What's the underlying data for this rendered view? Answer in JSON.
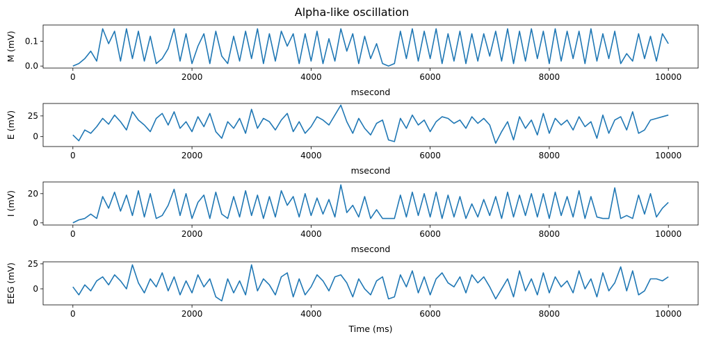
{
  "title": "Alpha-like oscillation",
  "chart_data": [
    {
      "type": "line",
      "ylabel": "M (mV)",
      "xlabel": "msecond",
      "xlim": [
        -500,
        10500
      ],
      "ylim": [
        -0.008,
        0.165
      ],
      "xticks": [
        0,
        2000,
        4000,
        6000,
        8000,
        10000
      ],
      "yticks": [
        0.0,
        0.1
      ],
      "ytick_labels": [
        "0.0",
        "0.1"
      ],
      "color": "#1f77b4",
      "series": [
        {
          "x": [
            0,
            100,
            200,
            300,
            400,
            500,
            600,
            700,
            800,
            900,
            1000,
            1100,
            1200,
            1300,
            1400,
            1500,
            1600,
            1700,
            1800,
            1900,
            2000,
            2100,
            2200,
            2300,
            2400,
            2500,
            2600,
            2700,
            2800,
            2900,
            3000,
            3100,
            3200,
            3300,
            3400,
            3500,
            3600,
            3700,
            3800,
            3900,
            4000,
            4100,
            4200,
            4300,
            4400,
            4500,
            4600,
            4700,
            4800,
            4900,
            5000,
            5100,
            5200,
            5300,
            5400,
            5500,
            5600,
            5700,
            5800,
            5900,
            6000,
            6100,
            6200,
            6300,
            6400,
            6500,
            6600,
            6700,
            6800,
            6900,
            7000,
            7100,
            7200,
            7300,
            7400,
            7500,
            7600,
            7700,
            7800,
            7900,
            8000,
            8100,
            8200,
            8300,
            8400,
            8500,
            8600,
            8700,
            8800,
            8900,
            9000,
            9100,
            9200,
            9300,
            9400,
            9500,
            9600,
            9700,
            9800,
            9900,
            10000
          ],
          "values": [
            0.0,
            0.01,
            0.03,
            0.06,
            0.02,
            0.15,
            0.09,
            0.14,
            0.02,
            0.15,
            0.03,
            0.14,
            0.02,
            0.12,
            0.01,
            0.03,
            0.07,
            0.15,
            0.02,
            0.13,
            0.01,
            0.08,
            0.13,
            0.01,
            0.14,
            0.04,
            0.01,
            0.12,
            0.02,
            0.14,
            0.03,
            0.15,
            0.01,
            0.13,
            0.02,
            0.14,
            0.08,
            0.13,
            0.01,
            0.13,
            0.02,
            0.14,
            0.01,
            0.11,
            0.02,
            0.15,
            0.06,
            0.13,
            0.01,
            0.12,
            0.03,
            0.09,
            0.01,
            0.0,
            0.01,
            0.14,
            0.03,
            0.15,
            0.02,
            0.14,
            0.03,
            0.15,
            0.01,
            0.13,
            0.02,
            0.14,
            0.01,
            0.13,
            0.02,
            0.13,
            0.04,
            0.14,
            0.02,
            0.15,
            0.01,
            0.14,
            0.02,
            0.15,
            0.03,
            0.14,
            0.01,
            0.15,
            0.02,
            0.14,
            0.03,
            0.14,
            0.01,
            0.15,
            0.02,
            0.13,
            0.03,
            0.14,
            0.01,
            0.05,
            0.02,
            0.13,
            0.03,
            0.12,
            0.02,
            0.13,
            0.09
          ]
        }
      ]
    },
    {
      "type": "line",
      "ylabel": "E (mV)",
      "xlabel": "msecond",
      "xlim": [
        -500,
        10500
      ],
      "ylim": [
        -12,
        40
      ],
      "xticks": [
        0,
        2000,
        4000,
        6000,
        8000,
        10000
      ],
      "yticks": [
        0,
        25
      ],
      "ytick_labels": [
        "0",
        "25"
      ],
      "color": "#1f77b4",
      "series": [
        {
          "x": [
            0,
            100,
            200,
            300,
            400,
            500,
            600,
            700,
            800,
            900,
            1000,
            1100,
            1200,
            1300,
            1400,
            1500,
            1600,
            1700,
            1800,
            1900,
            2000,
            2100,
            2200,
            2300,
            2400,
            2500,
            2600,
            2700,
            2800,
            2900,
            3000,
            3100,
            3200,
            3300,
            3400,
            3500,
            3600,
            3700,
            3800,
            3900,
            4000,
            4100,
            4200,
            4300,
            4400,
            4500,
            4600,
            4700,
            4800,
            4900,
            5000,
            5100,
            5200,
            5300,
            5400,
            5500,
            5600,
            5700,
            5800,
            5900,
            6000,
            6100,
            6200,
            6300,
            6400,
            6500,
            6600,
            6700,
            6800,
            6900,
            7000,
            7100,
            7200,
            7300,
            7400,
            7500,
            7600,
            7700,
            7800,
            7900,
            8000,
            8100,
            8200,
            8300,
            8400,
            8500,
            8600,
            8700,
            8800,
            8900,
            9000,
            9100,
            9200,
            9300,
            9400,
            9500,
            9600,
            9700,
            9800,
            9900,
            10000
          ],
          "values": [
            2,
            -5,
            8,
            4,
            12,
            22,
            15,
            26,
            18,
            8,
            30,
            20,
            14,
            6,
            22,
            28,
            14,
            30,
            10,
            18,
            6,
            24,
            12,
            28,
            6,
            -2,
            18,
            10,
            22,
            4,
            33,
            10,
            22,
            18,
            8,
            20,
            28,
            6,
            18,
            4,
            12,
            24,
            20,
            14,
            26,
            38,
            18,
            4,
            22,
            10,
            2,
            16,
            20,
            -4,
            -6,
            22,
            10,
            26,
            14,
            20,
            6,
            18,
            24,
            22,
            16,
            20,
            10,
            24,
            16,
            22,
            14,
            -8,
            6,
            18,
            -4,
            24,
            10,
            20,
            2,
            28,
            4,
            22,
            14,
            20,
            8,
            24,
            12,
            18,
            -2,
            26,
            4,
            20,
            24,
            8,
            30,
            4,
            8,
            20,
            22,
            24,
            26
          ]
        }
      ]
    },
    {
      "type": "line",
      "ylabel": "I (mV)",
      "xlabel": "msecond",
      "xlim": [
        -500,
        10500
      ],
      "ylim": [
        -1.5,
        28
      ],
      "xticks": [
        0,
        2000,
        4000,
        6000,
        8000,
        10000
      ],
      "yticks": [
        0,
        20
      ],
      "ytick_labels": [
        "0",
        "20"
      ],
      "color": "#1f77b4",
      "series": [
        {
          "x": [
            0,
            100,
            200,
            300,
            400,
            500,
            600,
            700,
            800,
            900,
            1000,
            1100,
            1200,
            1300,
            1400,
            1500,
            1600,
            1700,
            1800,
            1900,
            2000,
            2100,
            2200,
            2300,
            2400,
            2500,
            2600,
            2700,
            2800,
            2900,
            3000,
            3100,
            3200,
            3300,
            3400,
            3500,
            3600,
            3700,
            3800,
            3900,
            4000,
            4100,
            4200,
            4300,
            4400,
            4500,
            4600,
            4700,
            4800,
            4900,
            5000,
            5100,
            5200,
            5300,
            5400,
            5500,
            5600,
            5700,
            5800,
            5900,
            6000,
            6100,
            6200,
            6300,
            6400,
            6500,
            6600,
            6700,
            6800,
            6900,
            7000,
            7100,
            7200,
            7300,
            7400,
            7500,
            7600,
            7700,
            7800,
            7900,
            8000,
            8100,
            8200,
            8300,
            8400,
            8500,
            8600,
            8700,
            8800,
            8900,
            9000,
            9100,
            9200,
            9300,
            9400,
            9500,
            9600,
            9700,
            9800,
            9900,
            10000
          ],
          "values": [
            0,
            2,
            3,
            6,
            3,
            18,
            10,
            21,
            8,
            19,
            5,
            22,
            4,
            20,
            3,
            5,
            12,
            23,
            5,
            20,
            3,
            14,
            19,
            3,
            21,
            6,
            3,
            18,
            4,
            22,
            5,
            19,
            3,
            18,
            4,
            22,
            12,
            18,
            4,
            20,
            5,
            17,
            6,
            16,
            4,
            26,
            7,
            12,
            4,
            18,
            3,
            9,
            3,
            3,
            3,
            19,
            4,
            21,
            5,
            20,
            4,
            21,
            3,
            19,
            4,
            18,
            3,
            13,
            4,
            16,
            5,
            18,
            3,
            21,
            4,
            19,
            5,
            20,
            4,
            20,
            3,
            21,
            5,
            18,
            4,
            22,
            3,
            18,
            4,
            3,
            3,
            24,
            3,
            5,
            3,
            19,
            6,
            20,
            4,
            10,
            14
          ]
        }
      ]
    },
    {
      "type": "line",
      "ylabel": "EEG (mV)",
      "xlabel": "Time (ms)",
      "xlim": [
        -500,
        10500
      ],
      "ylim": [
        -16,
        27
      ],
      "xticks": [
        0,
        2000,
        4000,
        6000,
        8000,
        10000
      ],
      "yticks": [
        0,
        25
      ],
      "ytick_labels": [
        "0",
        "25"
      ],
      "color": "#1f77b4",
      "series": [
        {
          "x": [
            0,
            100,
            200,
            300,
            400,
            500,
            600,
            700,
            800,
            900,
            1000,
            1100,
            1200,
            1300,
            1400,
            1500,
            1600,
            1700,
            1800,
            1900,
            2000,
            2100,
            2200,
            2300,
            2400,
            2500,
            2600,
            2700,
            2800,
            2900,
            3000,
            3100,
            3200,
            3300,
            3400,
            3500,
            3600,
            3700,
            3800,
            3900,
            4000,
            4100,
            4200,
            4300,
            4400,
            4500,
            4600,
            4700,
            4800,
            4900,
            5000,
            5100,
            5200,
            5300,
            5400,
            5500,
            5600,
            5700,
            5800,
            5900,
            6000,
            6100,
            6200,
            6300,
            6400,
            6500,
            6600,
            6700,
            6800,
            6900,
            7000,
            7100,
            7200,
            7300,
            7400,
            7500,
            7600,
            7700,
            7800,
            7900,
            8000,
            8100,
            8200,
            8300,
            8400,
            8500,
            8600,
            8700,
            8800,
            8900,
            9000,
            9100,
            9200,
            9300,
            9400,
            9500,
            9600,
            9700,
            9800,
            9900,
            10000
          ],
          "values": [
            2,
            -6,
            4,
            -2,
            8,
            12,
            4,
            14,
            8,
            0,
            24,
            6,
            -4,
            10,
            2,
            16,
            -2,
            12,
            -6,
            8,
            -4,
            14,
            2,
            10,
            -8,
            -12,
            10,
            -4,
            8,
            -6,
            24,
            -2,
            10,
            4,
            -6,
            12,
            16,
            -8,
            10,
            -6,
            2,
            14,
            8,
            -2,
            12,
            14,
            6,
            -8,
            10,
            0,
            -6,
            8,
            12,
            -10,
            -8,
            14,
            2,
            18,
            -4,
            12,
            -6,
            10,
            16,
            6,
            2,
            12,
            -4,
            14,
            6,
            12,
            2,
            -10,
            0,
            10,
            -8,
            18,
            -2,
            10,
            -6,
            16,
            -4,
            12,
            2,
            8,
            -4,
            18,
            0,
            10,
            -8,
            16,
            -2,
            6,
            22,
            -2,
            18,
            -6,
            -2,
            10,
            10,
            8,
            12
          ]
        }
      ]
    }
  ]
}
